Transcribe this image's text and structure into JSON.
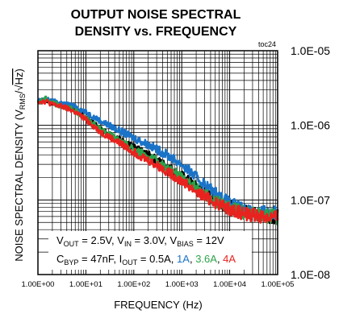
{
  "chart_data": {
    "type": "line",
    "title": [
      "OUTPUT NOISE SPECTRAL",
      "DENSITY vs. FREQUENCY"
    ],
    "figure_tag": "toc24",
    "xlabel": "FREQUENCY (Hz)",
    "ylabel": {
      "prefix": "NOISE SPECTRAL DENSITY (V",
      "sub": "RMS",
      "mid": "/",
      "root": "√",
      "tail": "Hz)"
    },
    "x_scale": "log",
    "y_scale": "log",
    "xlim": [
      1,
      100000
    ],
    "ylim": [
      1e-08,
      1e-05
    ],
    "grid": true,
    "xticks": [
      "1.00E+00",
      "1.00E+01",
      "1.00E+02",
      "1.00E+03",
      "1.00E+04",
      "1.00E+05"
    ],
    "yticks": [
      "1.0E-05",
      "1.0E-06",
      "1.0E-07",
      "1.0E-08"
    ],
    "conditions_line1": [
      {
        "t": "V"
      },
      {
        "t": "OUT",
        "sub": true
      },
      {
        "t": " = 2.5V, V"
      },
      {
        "t": "IN",
        "sub": true
      },
      {
        "t": " = 3.0V, V"
      },
      {
        "t": "BIAS",
        "sub": true
      },
      {
        "t": " = 12V"
      }
    ],
    "conditions_line2": [
      {
        "t": "C"
      },
      {
        "t": "BYP",
        "sub": true
      },
      {
        "t": " = 47nF, I"
      },
      {
        "t": "OUT",
        "sub": true
      },
      {
        "t": " = 0.5A, "
      },
      {
        "t": "1A",
        "color": "#1a73c7"
      },
      {
        "t": ", "
      },
      {
        "t": "3.6A",
        "color": "#2ca24a"
      },
      {
        "t": ", "
      },
      {
        "t": "4A",
        "color": "#e8231f"
      }
    ],
    "series": [
      {
        "label": "0.5A",
        "color": "#000000",
        "x": [
          1,
          1.5,
          2,
          3,
          5,
          7,
          10,
          20,
          50,
          100,
          200,
          500,
          1000,
          2000,
          5000,
          10000,
          20000,
          50000,
          100000
        ],
        "y": [
          2.1e-06,
          2.2e-06,
          2e-06,
          1.9e-06,
          1.7e-06,
          1.5e-06,
          1.3e-06,
          9e-07,
          6.5e-07,
          5e-07,
          4e-07,
          2.8e-07,
          2.1e-07,
          1.5e-07,
          1e-07,
          8e-08,
          7e-08,
          6.3e-08,
          6e-08
        ]
      },
      {
        "label": "1A",
        "color": "#1a73c7",
        "x": [
          1,
          1.5,
          2,
          3,
          5,
          7,
          10,
          20,
          50,
          100,
          200,
          500,
          1000,
          2000,
          5000,
          10000,
          20000,
          50000,
          100000
        ],
        "y": [
          2.1e-06,
          2.2e-06,
          2.1e-06,
          2e-06,
          1.85e-06,
          1.7e-06,
          1.5e-06,
          1.15e-06,
          8.5e-07,
          6.8e-07,
          5.5e-07,
          4e-07,
          3e-07,
          2e-07,
          1.25e-07,
          9e-08,
          7.5e-08,
          6.8e-08,
          6.5e-08
        ]
      },
      {
        "label": "3.6A",
        "color": "#2ca24a",
        "x": [
          1,
          1.5,
          2,
          3,
          5,
          7,
          10,
          20,
          50,
          100,
          200,
          500,
          1000,
          2000,
          5000,
          10000,
          20000,
          50000,
          100000
        ],
        "y": [
          2e-06,
          2.3e-06,
          2e-06,
          1.85e-06,
          1.65e-06,
          1.45e-06,
          1.25e-06,
          8.8e-07,
          6.2e-07,
          4.8e-07,
          3.8e-07,
          2.7e-07,
          2e-07,
          1.45e-07,
          9.8e-08,
          7.8e-08,
          6.8e-08,
          6.2e-08,
          5.9e-08
        ]
      },
      {
        "label": "4A",
        "color": "#e8231f",
        "x": [
          1,
          1.5,
          2,
          3,
          5,
          7,
          10,
          20,
          50,
          100,
          200,
          500,
          1000,
          2000,
          5000,
          10000,
          20000,
          50000,
          100000
        ],
        "y": [
          2.1e-06,
          2.1e-06,
          1.9e-06,
          1.8e-06,
          1.6e-06,
          1.4e-06,
          1.2e-06,
          8.2e-07,
          5.8e-07,
          4.4e-07,
          3.4e-07,
          2.4e-07,
          1.8e-07,
          1.3e-07,
          9.2e-08,
          7.5e-08,
          6.6e-08,
          6e-08,
          5.7e-08
        ]
      }
    ]
  }
}
